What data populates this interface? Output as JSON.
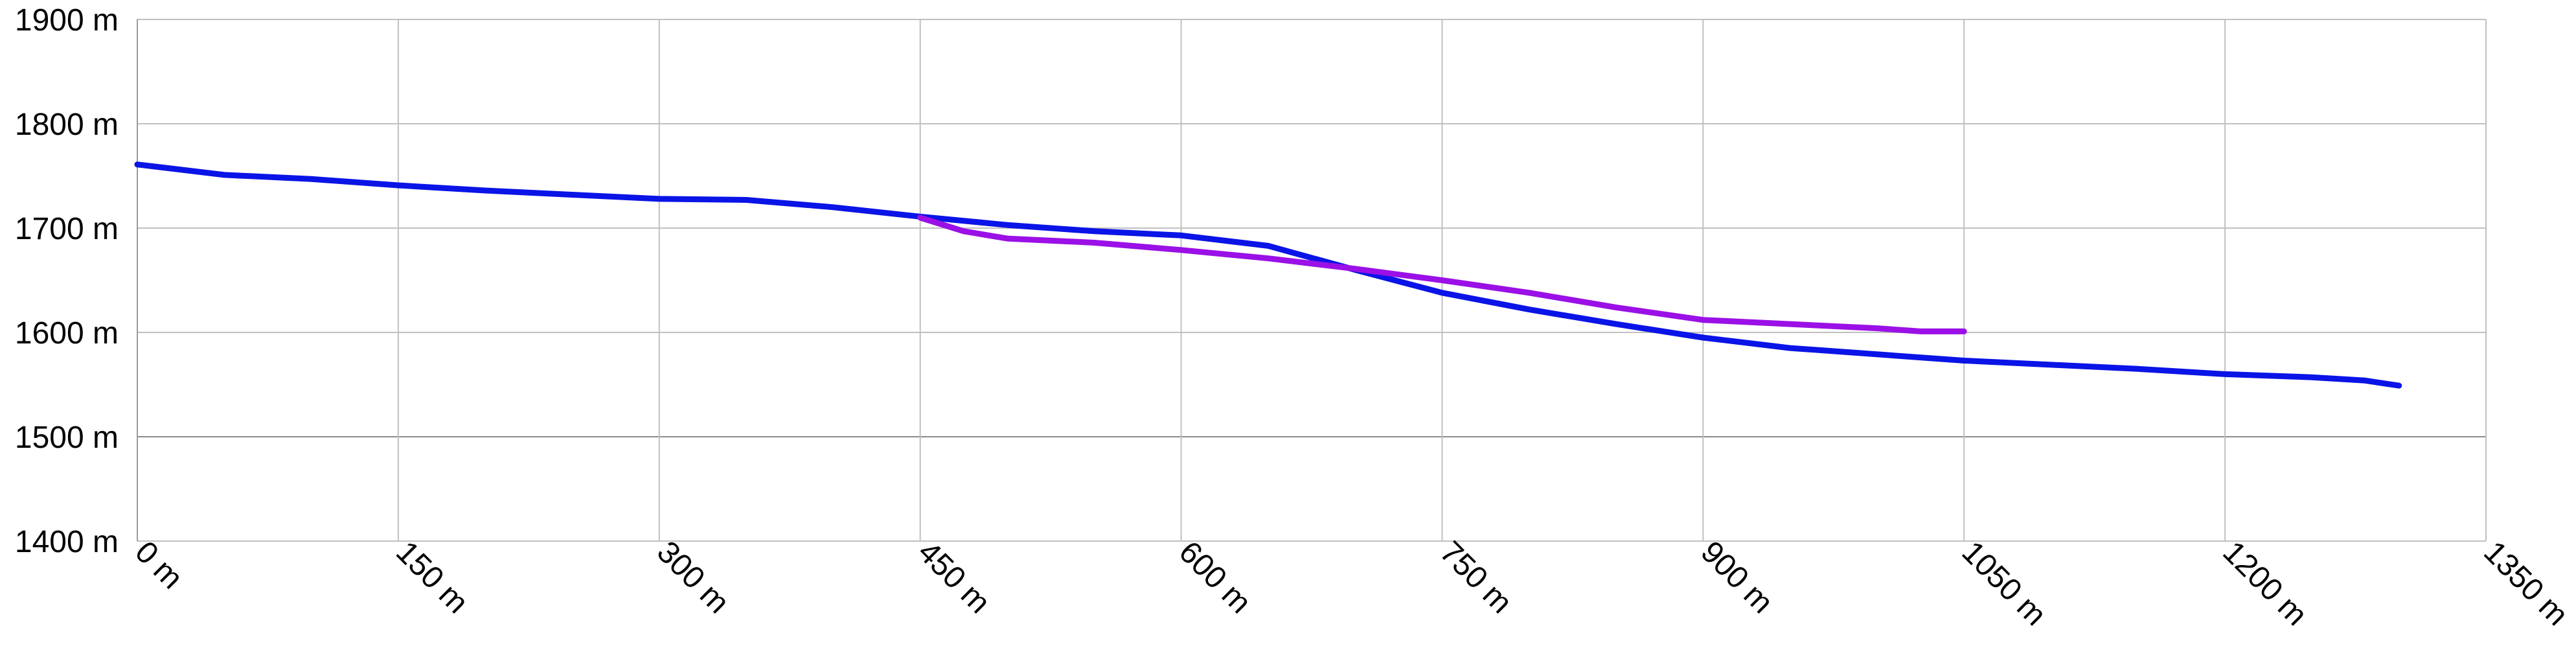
{
  "chart_data": {
    "type": "line",
    "title": "",
    "xlabel": "",
    "ylabel": "",
    "xlim": [
      0,
      1350
    ],
    "ylim": [
      1400,
      1900
    ],
    "grid": true,
    "x_ticks": [
      {
        "value": 0,
        "label": "0 m"
      },
      {
        "value": 150,
        "label": "150 m"
      },
      {
        "value": 300,
        "label": "300 m"
      },
      {
        "value": 450,
        "label": "450 m"
      },
      {
        "value": 600,
        "label": "600 m"
      },
      {
        "value": 750,
        "label": "750 m"
      },
      {
        "value": 900,
        "label": "900 m"
      },
      {
        "value": 1050,
        "label": "1050 m"
      },
      {
        "value": 1200,
        "label": "1200 m"
      },
      {
        "value": 1350,
        "label": "1350 m"
      }
    ],
    "y_ticks": [
      {
        "value": 1400,
        "label": "1400 m"
      },
      {
        "value": 1500,
        "label": "1500 m"
      },
      {
        "value": 1600,
        "label": "1600 m"
      },
      {
        "value": 1700,
        "label": "1700 m"
      },
      {
        "value": 1800,
        "label": "1800 m"
      },
      {
        "value": 1900,
        "label": "1900 m"
      }
    ],
    "series": [
      {
        "color": "#0a14e6",
        "points": [
          [
            0,
            1761
          ],
          [
            50,
            1751
          ],
          [
            100,
            1747
          ],
          [
            150,
            1741
          ],
          [
            200,
            1736
          ],
          [
            250,
            1732
          ],
          [
            300,
            1728
          ],
          [
            350,
            1727
          ],
          [
            400,
            1720
          ],
          [
            450,
            1711
          ],
          [
            500,
            1703
          ],
          [
            550,
            1697
          ],
          [
            600,
            1693
          ],
          [
            650,
            1683
          ],
          [
            700,
            1660
          ],
          [
            750,
            1638
          ],
          [
            800,
            1622
          ],
          [
            850,
            1608
          ],
          [
            900,
            1595
          ],
          [
            950,
            1585
          ],
          [
            1000,
            1579
          ],
          [
            1050,
            1573
          ],
          [
            1100,
            1569
          ],
          [
            1150,
            1565
          ],
          [
            1200,
            1560
          ],
          [
            1250,
            1557
          ],
          [
            1280,
            1554
          ],
          [
            1300,
            1549
          ]
        ]
      },
      {
        "color": "#9a10e6",
        "points": [
          [
            450,
            1710
          ],
          [
            475,
            1697
          ],
          [
            500,
            1690
          ],
          [
            550,
            1686
          ],
          [
            600,
            1679
          ],
          [
            650,
            1671
          ],
          [
            700,
            1661
          ],
          [
            750,
            1650
          ],
          [
            800,
            1638
          ],
          [
            850,
            1624
          ],
          [
            900,
            1612
          ],
          [
            950,
            1608
          ],
          [
            1000,
            1604
          ],
          [
            1025,
            1601
          ],
          [
            1050,
            1601
          ]
        ]
      }
    ]
  }
}
